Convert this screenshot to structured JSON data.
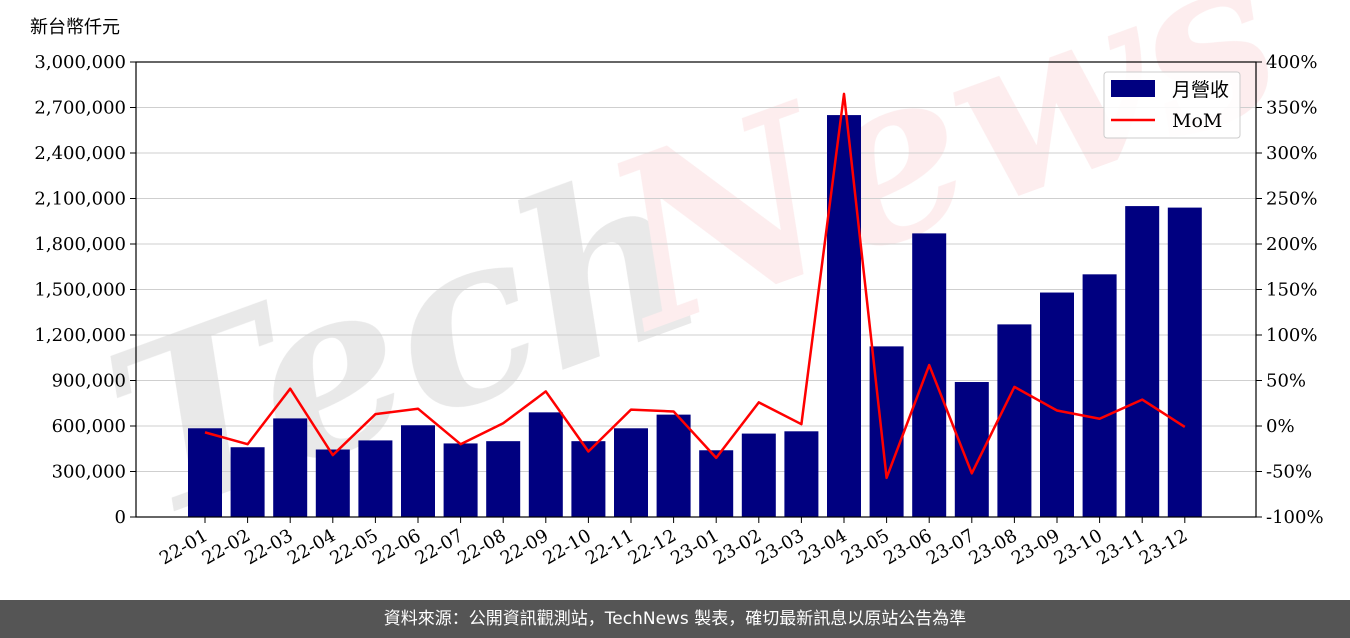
{
  "chart_data": {
    "type": "bar",
    "unit_label": "新台幣仟元",
    "categories": [
      "22-01",
      "22-02",
      "22-03",
      "22-04",
      "22-05",
      "22-06",
      "22-07",
      "22-08",
      "22-09",
      "22-10",
      "22-11",
      "22-12",
      "23-01",
      "23-02",
      "23-03",
      "23-04",
      "23-05",
      "23-06",
      "23-07",
      "23-08",
      "23-09",
      "23-10",
      "23-11",
      "23-12"
    ],
    "series": [
      {
        "name": "月營收",
        "kind": "bar",
        "axis": "left",
        "color": "#000080",
        "values": [
          585000,
          460000,
          650000,
          445000,
          505000,
          605000,
          485000,
          500000,
          690000,
          500000,
          585000,
          675000,
          440000,
          550000,
          565000,
          2650000,
          1125000,
          1870000,
          890000,
          1270000,
          1480000,
          1600000,
          2050000,
          2040000
        ]
      },
      {
        "name": "MoM",
        "kind": "line",
        "axis": "right",
        "color": "#ff0000",
        "values": [
          -7,
          -20,
          41,
          -32,
          13,
          19,
          -20,
          3,
          38,
          -28,
          18,
          16,
          -35,
          26,
          2,
          365,
          -57,
          67,
          -52,
          43,
          17,
          8,
          29,
          -1
        ]
      }
    ],
    "left_axis": {
      "min": 0,
      "max": 3000000,
      "ticks": [
        "0",
        "300,000",
        "600,000",
        "900,000",
        "1,200,000",
        "1,500,000",
        "1,800,000",
        "2,100,000",
        "2,400,000",
        "2,700,000",
        "3,000,000"
      ]
    },
    "right_axis": {
      "min": -100,
      "max": 400,
      "ticks": [
        "-100%",
        "-50%",
        "0%",
        "50%",
        "100%",
        "150%",
        "200%",
        "250%",
        "300%",
        "350%",
        "400%"
      ]
    },
    "grid": "horizontal",
    "legend": "top-right",
    "watermark": "TechNews"
  },
  "footer": {
    "text": "資料來源：公開資訊觀測站，TechNews 製表，確切最新訊息以原站公告為準"
  }
}
